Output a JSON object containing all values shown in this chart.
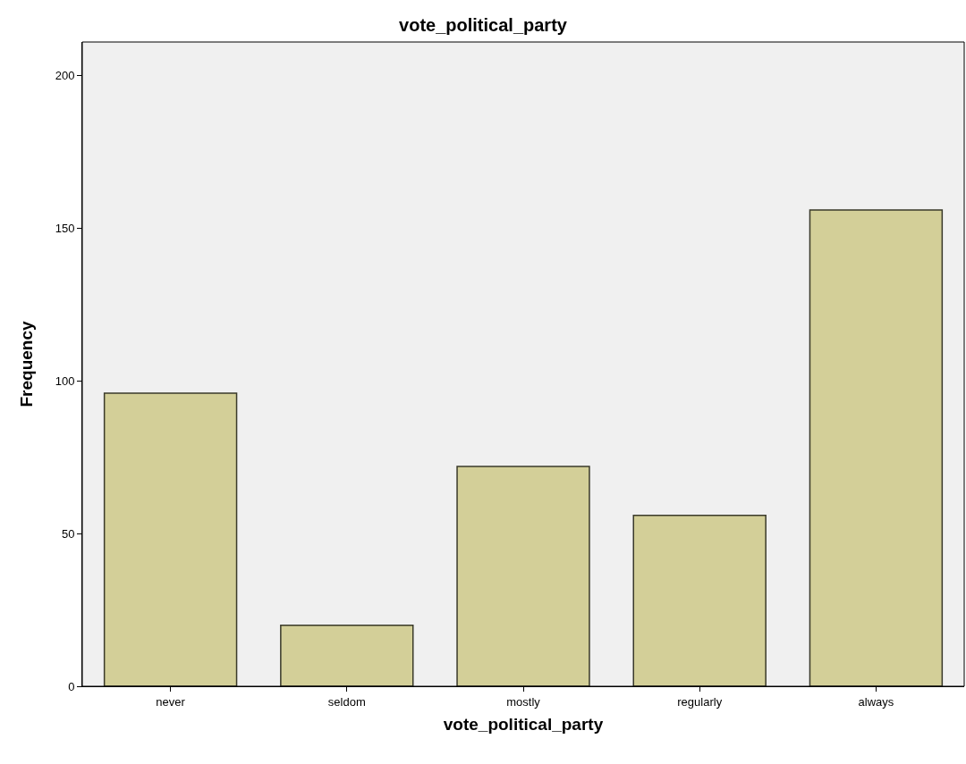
{
  "chart_data": {
    "type": "bar",
    "title": "vote_political_party",
    "xlabel": "vote_political_party",
    "ylabel": "Frequency",
    "categories": [
      "never",
      "seldom",
      "mostly",
      "regularly",
      "always"
    ],
    "values": [
      96,
      20,
      72,
      56,
      156
    ],
    "color": "#d3cf98",
    "ylim": [
      0,
      211
    ],
    "yticks": [
      0,
      50,
      100,
      150,
      200
    ],
    "grid": false
  }
}
